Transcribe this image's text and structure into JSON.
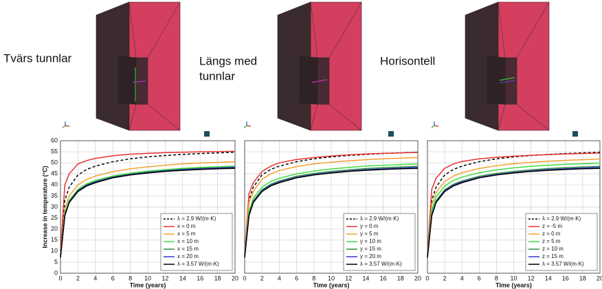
{
  "panels": [
    {
      "label_lines": [
        "Tvärs tunnlar"
      ]
    },
    {
      "label_lines": [
        "Längs med",
        "tunnlar"
      ]
    },
    {
      "label_lines": [
        "Horisontell"
      ]
    }
  ],
  "chart_data": [
    {
      "type": "line",
      "x_label": "Time (years)",
      "y_label": "Increase in temperature (°C)",
      "show_ytick_labels": true,
      "grid": true,
      "legend": "lower right",
      "xlim": [
        0,
        20
      ],
      "ylim": [
        0,
        60
      ],
      "xticks": [
        0,
        2,
        4,
        6,
        8,
        10,
        12,
        14,
        16,
        18,
        20
      ],
      "yticks": [
        0,
        5,
        10,
        15,
        20,
        25,
        30,
        35,
        40,
        45,
        50,
        55,
        60
      ],
      "x": [
        0,
        0.5,
        1,
        2,
        3,
        4,
        6,
        8,
        10,
        12,
        14,
        16,
        18,
        20
      ],
      "series": [
        {
          "name": "λ = 2.9 W/(m·K)",
          "color": "#000000",
          "dashed": true,
          "values": [
            8,
            33,
            39,
            44.5,
            47,
            48.5,
            50.5,
            51.8,
            52.7,
            53.3,
            53.8,
            54.2,
            54.5,
            54.8
          ]
        },
        {
          "name": "x = 0 m",
          "color": "#e8312f",
          "values": [
            10,
            40,
            45,
            49.5,
            51,
            52,
            53.2,
            53.9,
            54.3,
            54.6,
            54.8,
            55,
            55.1,
            55.2
          ]
        },
        {
          "name": "x = 5 m",
          "color": "#f5a030",
          "values": [
            8,
            29,
            35,
            40,
            42.5,
            44,
            46,
            47.3,
            48.2,
            48.9,
            49.5,
            49.9,
            50.2,
            50.5
          ]
        },
        {
          "name": "x = 10 m",
          "color": "#3ddc3d",
          "values": [
            8,
            27,
            33,
            38,
            40.5,
            42,
            44,
            45.3,
            46.2,
            46.9,
            47.5,
            47.9,
            48.2,
            48.5
          ]
        },
        {
          "name": "x = 15 m",
          "color": "#2e8b3e",
          "values": [
            7.5,
            26.5,
            32.5,
            37.5,
            40,
            41.5,
            43.6,
            44.9,
            45.8,
            46.5,
            47.1,
            47.5,
            47.8,
            48.1
          ]
        },
        {
          "name": "x = 20 m",
          "color": "#3333cc",
          "values": [
            7.5,
            26.3,
            32.3,
            37.3,
            39.8,
            41.3,
            43.4,
            44.7,
            45.6,
            46.3,
            46.9,
            47.3,
            47.6,
            47.9
          ]
        },
        {
          "name": "λ = 3.57 W/(m·K)",
          "color": "#000000",
          "values": [
            7,
            26,
            32,
            37,
            39.5,
            41,
            43.2,
            44.5,
            45.4,
            46.1,
            46.6,
            47,
            47.3,
            47.5
          ]
        }
      ]
    },
    {
      "type": "line",
      "x_label": "Time (years)",
      "show_ytick_labels": false,
      "grid": true,
      "legend": "lower right",
      "xlim": [
        0,
        20
      ],
      "ylim": [
        0,
        60
      ],
      "xticks": [
        0,
        2,
        4,
        6,
        8,
        10,
        12,
        14,
        16,
        18,
        20
      ],
      "yticks": [
        0,
        5,
        10,
        15,
        20,
        25,
        30,
        35,
        40,
        45,
        50,
        55,
        60
      ],
      "x": [
        0,
        0.5,
        1,
        2,
        3,
        4,
        6,
        8,
        10,
        12,
        14,
        16,
        18,
        20
      ],
      "series": [
        {
          "name": "λ = 2.9 W/(m·K)",
          "color": "#000000",
          "dashed": true,
          "values": [
            8,
            33,
            39,
            44.5,
            47,
            48.5,
            50.5,
            51.8,
            52.7,
            53.3,
            53.8,
            54.2,
            54.5,
            54.8
          ]
        },
        {
          "name": "y = 0 m",
          "color": "#e8312f",
          "values": [
            9,
            36,
            41,
            46,
            48.5,
            50,
            51.5,
            52.4,
            53.1,
            53.6,
            54,
            54.3,
            54.5,
            54.7
          ]
        },
        {
          "name": "y = 5 m",
          "color": "#f5a030",
          "values": [
            8,
            32,
            37,
            42.5,
            45,
            46.5,
            48.3,
            49.5,
            50.3,
            50.9,
            51.4,
            51.8,
            52.1,
            52.4
          ]
        },
        {
          "name": "y = 10 m",
          "color": "#3ddc3d",
          "values": [
            8,
            28,
            34,
            39,
            41.5,
            43,
            45,
            46.3,
            47.2,
            47.9,
            48.5,
            48.9,
            49.2,
            49.5
          ]
        },
        {
          "name": "y = 15 m",
          "color": "#2e8b3e",
          "values": [
            7.5,
            26.8,
            32.8,
            37.8,
            40.3,
            41.8,
            43.9,
            45.2,
            46.1,
            46.8,
            47.4,
            47.8,
            48.1,
            48.4
          ]
        },
        {
          "name": "y = 20 m",
          "color": "#3333cc",
          "values": [
            7.5,
            26.3,
            32.3,
            37.3,
            39.8,
            41.3,
            43.4,
            44.7,
            45.6,
            46.3,
            46.9,
            47.3,
            47.6,
            47.9
          ]
        },
        {
          "name": "λ = 3.57 W/(m·K)",
          "color": "#000000",
          "values": [
            7,
            26,
            32,
            37,
            39.5,
            41,
            43.2,
            44.5,
            45.4,
            46.1,
            46.6,
            47,
            47.3,
            47.5
          ]
        }
      ]
    },
    {
      "type": "line",
      "x_label": "Time (years)",
      "show_ytick_labels": false,
      "grid": true,
      "legend": "lower right",
      "xlim": [
        0,
        20
      ],
      "ylim": [
        0,
        60
      ],
      "xticks": [
        0,
        2,
        4,
        6,
        8,
        10,
        12,
        14,
        16,
        18,
        20
      ],
      "yticks": [
        0,
        5,
        10,
        15,
        20,
        25,
        30,
        35,
        40,
        45,
        50,
        55,
        60
      ],
      "x": [
        0,
        0.5,
        1,
        2,
        3,
        4,
        6,
        8,
        10,
        12,
        14,
        16,
        18,
        20
      ],
      "series": [
        {
          "name": "λ = 2.9 W/(m·K)",
          "color": "#000000",
          "dashed": true,
          "values": [
            8,
            33,
            39,
            44.5,
            47,
            48.5,
            50.5,
            51.8,
            52.7,
            53.3,
            53.8,
            54.2,
            54.5,
            54.8
          ]
        },
        {
          "name": "z = -5 m",
          "color": "#e8312f",
          "values": [
            9,
            38,
            43,
            47.5,
            49.5,
            50.6,
            51.8,
            52.5,
            53,
            53.4,
            53.7,
            54,
            54.2,
            54.4
          ]
        },
        {
          "name": "z = 0 m",
          "color": "#f5a030",
          "values": [
            8,
            31,
            36.5,
            41.5,
            44,
            45.5,
            47.4,
            48.7,
            49.6,
            50.2,
            50.7,
            51.1,
            51.4,
            51.7
          ]
        },
        {
          "name": "z = 5 m",
          "color": "#3ddc3d",
          "values": [
            8,
            28.5,
            34.5,
            39.5,
            42,
            43.5,
            45.5,
            46.8,
            47.7,
            48.4,
            48.9,
            49.3,
            49.6,
            49.9
          ]
        },
        {
          "name": "z = 10 m",
          "color": "#2e8b3e",
          "values": [
            7.5,
            26.8,
            32.8,
            37.8,
            40.3,
            41.8,
            43.9,
            45.2,
            46.1,
            46.8,
            47.4,
            47.8,
            48.1,
            48.4
          ]
        },
        {
          "name": "z = 15 m",
          "color": "#3333cc",
          "values": [
            7.5,
            26.3,
            32.3,
            37.3,
            39.8,
            41.3,
            43.4,
            44.7,
            45.6,
            46.3,
            46.9,
            47.3,
            47.6,
            47.9
          ]
        },
        {
          "name": "λ = 3.57 W/(m·K)",
          "color": "#000000",
          "values": [
            7,
            26,
            32,
            37,
            39.5,
            41,
            43.2,
            44.5,
            45.4,
            46.1,
            46.6,
            47,
            47.3,
            47.5
          ]
        }
      ]
    }
  ]
}
